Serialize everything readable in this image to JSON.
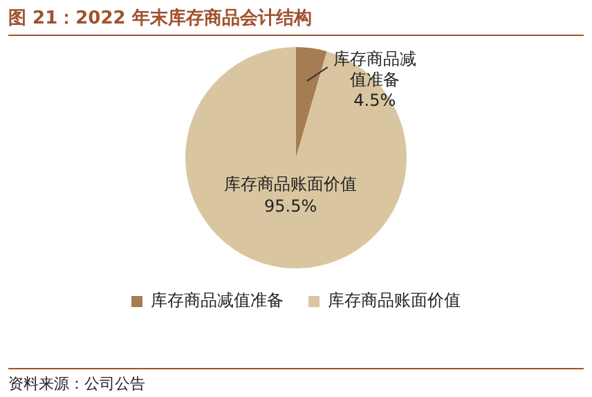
{
  "chart_data": {
    "type": "pie",
    "title": "图 21：2022 年末库存商品会计结构",
    "categories": [
      "库存商品减值准备",
      "库存商品账面价值"
    ],
    "values": [
      4.5,
      95.5
    ],
    "colors": [
      "#a67c52",
      "#d9c6a0"
    ],
    "value_labels": [
      "4.5%",
      "95.5%"
    ],
    "legend": "bottom",
    "annotations": [
      "资料来源：公司公告"
    ]
  }
}
